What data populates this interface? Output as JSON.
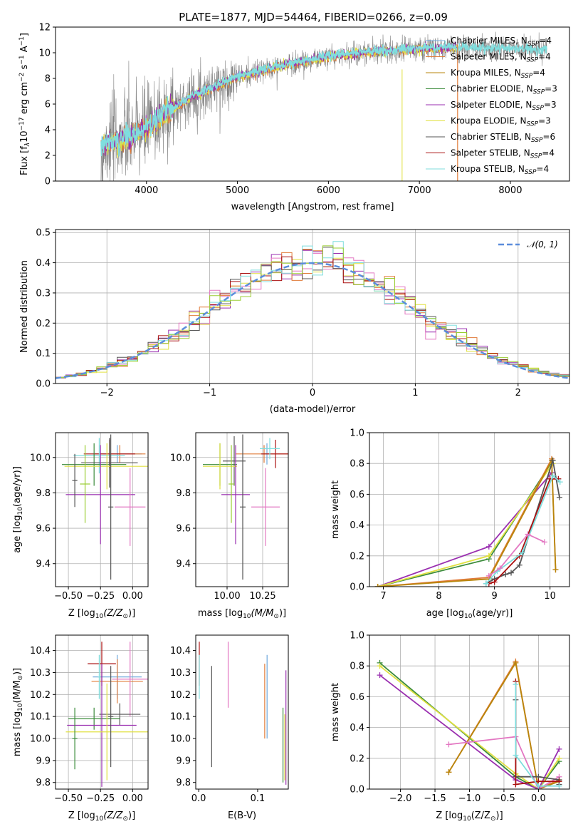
{
  "figure_title": "PLATE=1877, MJD=54464, FIBERID=0266, z=0.09",
  "colors": {
    "Chabrier MILES": "#6fa8dc",
    "Salpeter MILES": "#e07b39",
    "Kroupa MILES": "#b8860b",
    "Chabrier ELODIE": "#3c8c3c",
    "Salpeter ELODIE": "#9a2fb0",
    "Kroupa ELODIE": "#e0e040",
    "Chabrier STELIB": "#555555",
    "Salpeter STELIB": "#aa1111",
    "Kroupa STELIB": "#7fdede",
    "data": "#808080",
    "gauss": "#5b8ddb",
    "pink": "#e377c2",
    "lime": "#9acd32",
    "grid": "#b0b0b0"
  },
  "chart_data": [
    {
      "id": "spectrum",
      "type": "line",
      "title": "PLATE=1877, MJD=54464, FIBERID=0266, z=0.09",
      "xlabel": "wavelength [Angstrom, rest frame]",
      "ylabel_parts": [
        "Flux [f",
        "λ",
        "10",
        "−17",
        " erg cm",
        "−2",
        " s",
        "−1",
        " A",
        "−1",
        "]"
      ],
      "xlim": [
        3000,
        8650
      ],
      "ylim": [
        0,
        12
      ],
      "xticks": [
        4000,
        5000,
        6000,
        7000,
        8000
      ],
      "yticks": [
        0,
        2,
        4,
        6,
        8,
        10,
        12
      ],
      "grid": false,
      "legend_position": "top-right",
      "legend": [
        {
          "name": "Chabrier MILES",
          "n": "4"
        },
        {
          "name": "Salpeter MILES",
          "n": "4"
        },
        {
          "name": "Kroupa MILES",
          "n": "4"
        },
        {
          "name": "Chabrier ELODIE",
          "n": "3"
        },
        {
          "name": "Salpeter ELODIE",
          "n": "3"
        },
        {
          "name": "Kroupa ELODIE",
          "n": "3"
        },
        {
          "name": "Chabrier STELIB",
          "n": "6"
        },
        {
          "name": "Salpeter STELIB",
          "n": "4"
        },
        {
          "name": "Kroupa STELIB",
          "n": "4"
        }
      ],
      "legend_n_label": "N",
      "legend_n_sub": "SSP",
      "continuum": {
        "x": [
          3500,
          3600,
          3800,
          4000,
          4200,
          4500,
          5000,
          5500,
          6000,
          6500,
          7000,
          7500,
          8000,
          8400
        ],
        "y": [
          2.6,
          3.0,
          3.4,
          4.1,
          5.2,
          6.6,
          8.1,
          9.0,
          9.7,
          10.1,
          10.3,
          10.4,
          10.3,
          10.2
        ]
      },
      "data_range": [
        3500,
        8400
      ],
      "model_range": [
        3500,
        7420
      ],
      "extra_model_range": [
        7420,
        8400
      ]
    },
    {
      "id": "residuals",
      "type": "bar",
      "xlabel": "(data-model)/error",
      "ylabel": "Normed distribution",
      "xlim": [
        -2.5,
        2.5
      ],
      "ylim": [
        0,
        0.51
      ],
      "xticks": [
        -2,
        -1,
        0,
        1,
        2
      ],
      "yticks": [
        0,
        0.1,
        0.2,
        0.3,
        0.4,
        0.5
      ],
      "grid": true,
      "legend_position": "top-right",
      "legend_label": "𝒩(0, 1)",
      "bin_width": 0.1
    },
    {
      "id": "age-vs-Z",
      "type": "scatter",
      "xlabel_parts": [
        "Z [log",
        "10",
        "(Z/Z",
        "⊙",
        ")]"
      ],
      "ylabel_parts": [
        "age  [log",
        "10",
        "(age/yr)]"
      ],
      "xlim": [
        -0.6,
        0.12
      ],
      "ylim": [
        9.27,
        10.14
      ],
      "xticks": [
        -0.5,
        -0.25,
        0.0
      ],
      "xtick_labels": [
        "−0.50",
        "−0.25",
        "0.00"
      ],
      "yticks": [
        9.4,
        9.6,
        9.8,
        10.0
      ],
      "grid": true,
      "points": [
        {
          "series": "Chabrier MILES",
          "x": -0.12,
          "xerr": 0.19,
          "y": 10.02,
          "yerr": 0.05
        },
        {
          "series": "Salpeter MILES",
          "x": -0.1,
          "xerr": 0.2,
          "y": 10.02,
          "yerr": 0.05
        },
        {
          "series": "Salpeter STELIB",
          "x": -0.18,
          "xerr": 0.2,
          "y": 10.02,
          "yerr": 0.08
        },
        {
          "series": "Kroupa STELIB",
          "x": -0.26,
          "xerr": 0.2,
          "y": 10.01,
          "yerr": 0.1
        },
        {
          "series": "Chabrier ELODIE",
          "x": -0.3,
          "xerr": 0.25,
          "y": 9.96,
          "yerr": 0.12
        },
        {
          "series": "Chabrier STELIB",
          "x": -0.18,
          "xerr": 0.22,
          "y": 9.97,
          "yerr": 0.14
        },
        {
          "series": "Kroupa ELODIE",
          "x": -0.2,
          "xerr": 0.33,
          "y": 9.95,
          "yerr": 0.13
        },
        {
          "series": "Salpeter ELODIE",
          "x": -0.25,
          "xerr": 0.27,
          "y": 9.79,
          "yerr": 0.28
        },
        {
          "series": "pink",
          "x": -0.02,
          "xerr": 0.12,
          "y": 9.72,
          "yerr": 0.22
        },
        {
          "series": "lime",
          "x": -0.37,
          "xerr": 0.04,
          "y": 9.85,
          "yerr": 0.22
        },
        {
          "series": "Chabrier STELIB",
          "x": -0.45,
          "xerr": 0.02,
          "y": 9.87,
          "yerr": 0.15
        },
        {
          "series": "Chabrier STELIB",
          "x": -0.17,
          "xerr": 0.02,
          "y": 9.72,
          "yerr": 0.41
        }
      ]
    },
    {
      "id": "age-vs-mass",
      "type": "scatter",
      "xlabel_parts": [
        "mass [log",
        "10",
        "(M/M",
        "⊙",
        ")]"
      ],
      "ylabel_parts": [],
      "xlim": [
        9.78,
        10.43
      ],
      "ylim": [
        9.27,
        10.14
      ],
      "xticks": [
        10.0,
        10.25
      ],
      "xtick_labels": [
        "10.00",
        "10.25"
      ],
      "yticks": [
        9.4,
        9.6,
        9.8,
        10.0
      ],
      "grid": true,
      "points": [
        {
          "series": "Chabrier MILES",
          "x": 10.28,
          "xerr": 0.02,
          "y": 10.02,
          "yerr": 0.06
        },
        {
          "series": "Salpeter MILES",
          "x": 10.26,
          "xerr": 0.2,
          "y": 10.02,
          "yerr": 0.05
        },
        {
          "series": "Salpeter STELIB",
          "x": 10.34,
          "xerr": 0.1,
          "y": 10.02,
          "yerr": 0.08
        },
        {
          "series": "Kroupa STELIB",
          "x": 10.3,
          "xerr": 0.07,
          "y": 10.05,
          "yerr": 0.06
        },
        {
          "series": "Chabrier ELODIE",
          "x": 9.95,
          "xerr": 0.12,
          "y": 9.96,
          "yerr": 0.12
        },
        {
          "series": "Chabrier STELIB",
          "x": 10.05,
          "xerr": 0.08,
          "y": 9.98,
          "yerr": 0.14
        },
        {
          "series": "Kroupa ELODIE",
          "x": 9.95,
          "xerr": 0.12,
          "y": 9.95,
          "yerr": 0.13
        },
        {
          "series": "Salpeter ELODIE",
          "x": 10.06,
          "xerr": 0.1,
          "y": 9.79,
          "yerr": 0.28
        },
        {
          "series": "pink",
          "x": 10.27,
          "xerr": 0.1,
          "y": 9.72,
          "yerr": 0.22
        },
        {
          "series": "lime",
          "x": 10.03,
          "xerr": 0.02,
          "y": 9.85,
          "yerr": 0.22
        },
        {
          "series": "Chabrier STELIB",
          "x": 10.11,
          "xerr": 0.02,
          "y": 9.72,
          "yerr": 0.41
        }
      ]
    },
    {
      "id": "weight-vs-age",
      "type": "line",
      "xlabel_parts": [
        "age  [log",
        "10",
        "(age/yr)]"
      ],
      "ylabel": "mass weight",
      "xlim": [
        6.75,
        10.35
      ],
      "ylim": [
        0,
        1
      ],
      "xticks": [
        7,
        8,
        9,
        10
      ],
      "yticks": [
        0,
        0.2,
        0.4,
        0.6,
        0.8,
        1.0
      ],
      "grid": true,
      "series": [
        {
          "series": "Salpeter ELODIE",
          "x": [
            6.9,
            8.9,
            10.03
          ],
          "y": [
            0.0,
            0.26,
            0.74
          ]
        },
        {
          "series": "Chabrier ELODIE",
          "x": [
            6.9,
            8.9,
            10.05
          ],
          "y": [
            0.0,
            0.18,
            0.82
          ]
        },
        {
          "series": "Kroupa ELODIE",
          "x": [
            6.9,
            8.9,
            10.05
          ],
          "y": [
            0.0,
            0.2,
            0.8
          ]
        },
        {
          "series": "Salpeter MILES",
          "x": [
            6.9,
            8.9,
            10.03,
            10.1
          ],
          "y": [
            0.0,
            0.06,
            0.83,
            0.11
          ]
        },
        {
          "series": "Kroupa MILES",
          "x": [
            6.9,
            8.9,
            10.03,
            10.1
          ],
          "y": [
            0.0,
            0.05,
            0.82,
            0.11
          ]
        },
        {
          "series": "Chabrier STELIB",
          "x": [
            8.85,
            9.0,
            9.2,
            9.3,
            9.45,
            10.05,
            10.17
          ],
          "y": [
            0.02,
            0.05,
            0.08,
            0.09,
            0.14,
            0.82,
            0.58
          ]
        },
        {
          "series": "Salpeter STELIB",
          "x": [
            8.9,
            9.0,
            9.45,
            10.0,
            10.15
          ],
          "y": [
            0.02,
            0.03,
            0.2,
            0.7,
            0.7
          ]
        },
        {
          "series": "Kroupa STELIB",
          "x": [
            8.85,
            9.05,
            9.5,
            10.05,
            10.18
          ],
          "y": [
            0.02,
            0.1,
            0.22,
            0.72,
            0.68
          ]
        },
        {
          "series": "pink",
          "x": [
            8.9,
            9.1,
            9.6,
            9.9
          ],
          "y": [
            0.07,
            0.12,
            0.34,
            0.29
          ]
        }
      ]
    },
    {
      "id": "mass-vs-Z",
      "type": "scatter",
      "xlabel_parts": [
        "Z [log",
        "10",
        "(Z/Z",
        "⊙",
        ")]"
      ],
      "ylabel_parts": [
        "mass [log",
        "10",
        "(M/M",
        "⊙",
        ")]"
      ],
      "xlim": [
        -0.6,
        0.12
      ],
      "ylim": [
        9.77,
        10.47
      ],
      "xticks": [
        -0.5,
        -0.25,
        0.0
      ],
      "xtick_labels": [
        "−0.50",
        "−0.25",
        "0.00"
      ],
      "yticks": [
        9.8,
        9.9,
        10.0,
        10.1,
        10.2,
        10.3,
        10.4
      ],
      "grid": true,
      "points": [
        {
          "series": "Chabrier MILES",
          "x": -0.12,
          "xerr": 0.19,
          "y": 10.28,
          "yerr": 0.1
        },
        {
          "series": "Salpeter MILES",
          "x": -0.12,
          "xerr": 0.2,
          "y": 10.26,
          "yerr": 0.1
        },
        {
          "series": "Salpeter STELIB",
          "x": -0.24,
          "xerr": 0.11,
          "y": 10.34,
          "yerr": 0.1
        },
        {
          "series": "pink",
          "x": -0.02,
          "xerr": 0.14,
          "y": 10.27,
          "yerr": 0.17
        },
        {
          "series": "Chabrier STELIB",
          "x": -0.1,
          "xerr": 0.16,
          "y": 10.11,
          "yerr": 0.05
        },
        {
          "series": "Chabrier ELODIE",
          "x": -0.3,
          "xerr": 0.2,
          "y": 10.09,
          "yerr": 0.05
        },
        {
          "series": "Salpeter ELODIE",
          "x": -0.24,
          "xerr": 0.27,
          "y": 10.06,
          "yerr": 0.28
        },
        {
          "series": "Kroupa ELODIE",
          "x": -0.2,
          "xerr": 0.32,
          "y": 10.03,
          "yerr": 0.22
        },
        {
          "series": "Chabrier STELIB",
          "x": -0.17,
          "xerr": 0.02,
          "y": 10.1,
          "yerr": 0.23
        },
        {
          "series": "Chabrier ELODIE",
          "x": -0.45,
          "xerr": 0.02,
          "y": 10.0,
          "yerr": 0.14
        },
        {
          "series": "Kroupa STELIB",
          "x": -0.26,
          "xerr": 0.01,
          "y": 10.28,
          "yerr": 0.1
        }
      ]
    },
    {
      "id": "mass-vs-ebv",
      "type": "scatter",
      "xlabel": "E(B-V)",
      "ylabel_parts": [],
      "xlim": [
        -0.005,
        0.152
      ],
      "ylim": [
        9.77,
        10.47
      ],
      "xticks": [
        0.0,
        0.1
      ],
      "xtick_labels": [
        "0.0",
        "0.1"
      ],
      "yticks": [
        9.8,
        9.9,
        10.0,
        10.1,
        10.2,
        10.3,
        10.4
      ],
      "grid": false,
      "points": [
        {
          "series": "Salpeter STELIB",
          "x": 0.001,
          "xerr": 0,
          "y": 10.34,
          "yerr": 0.1
        },
        {
          "series": "Kroupa STELIB",
          "x": 0.001,
          "xerr": 0,
          "y": 10.28,
          "yerr": 0.1
        },
        {
          "series": "Chabrier STELIB",
          "x": 0.022,
          "xerr": 0,
          "y": 10.1,
          "yerr": 0.23
        },
        {
          "series": "pink",
          "x": 0.05,
          "xerr": 0,
          "y": 10.29,
          "yerr": 0.15
        },
        {
          "series": "Salpeter MILES",
          "x": 0.112,
          "xerr": 0,
          "y": 10.17,
          "yerr": 0.17
        },
        {
          "series": "Chabrier MILES",
          "x": 0.116,
          "xerr": 0,
          "y": 10.19,
          "yerr": 0.19
        },
        {
          "series": "Chabrier ELODIE",
          "x": 0.143,
          "xerr": 0,
          "y": 9.97,
          "yerr": 0.17
        },
        {
          "series": "Salpeter ELODIE",
          "x": 0.148,
          "xerr": 0,
          "y": 10.05,
          "yerr": 0.26
        },
        {
          "series": "Kroupa ELODIE",
          "x": 0.146,
          "xerr": 0,
          "y": 9.96,
          "yerr": 0.15
        }
      ]
    },
    {
      "id": "weight-vs-Z",
      "type": "line",
      "xlabel_parts": [
        "Z [log",
        "10",
        "(Z/Z",
        "⊙",
        ")]"
      ],
      "ylabel": "mass weight",
      "xlim": [
        -2.45,
        0.45
      ],
      "ylim": [
        0,
        1
      ],
      "xticks": [
        -2.0,
        -1.5,
        -1.0,
        -0.5,
        0.0
      ],
      "xtick_labels": [
        "−2.0",
        "−1.5",
        "−1.0",
        "−0.5",
        "0.0"
      ],
      "yticks": [
        0,
        0.2,
        0.4,
        0.6,
        0.8,
        1.0
      ],
      "grid": true,
      "series": [
        {
          "series": "Chabrier ELODIE",
          "x": [
            -2.3,
            -0.33,
            0.0,
            0.3
          ],
          "y": [
            0.82,
            0.08,
            0.0,
            0.18
          ]
        },
        {
          "series": "Kroupa ELODIE",
          "x": [
            -2.3,
            -0.33,
            0.0,
            0.3
          ],
          "y": [
            0.8,
            0.1,
            0.0,
            0.2
          ]
        },
        {
          "series": "Salpeter ELODIE",
          "x": [
            -2.3,
            -0.33,
            0.0,
            0.3
          ],
          "y": [
            0.74,
            0.06,
            0.0,
            0.26
          ]
        },
        {
          "series": "Salpeter MILES",
          "x": [
            -1.3,
            -0.33,
            0.0,
            0.3
          ],
          "y": [
            0.11,
            0.83,
            0.0,
            0.06
          ]
        },
        {
          "series": "Kroupa MILES",
          "x": [
            -1.3,
            -0.33,
            0.0,
            0.3
          ],
          "y": [
            0.11,
            0.82,
            0.0,
            0.05
          ]
        },
        {
          "series": "pink",
          "x": [
            -1.3,
            -0.33,
            0.0,
            0.3
          ],
          "y": [
            0.29,
            0.34,
            0.0,
            0.08
          ]
        },
        {
          "series": "Chabrier STELIB",
          "x": [
            -0.33,
            -0.33,
            0.0,
            0.3,
            0.3
          ],
          "y": [
            0.58,
            0.08,
            0.08,
            0.06,
            0.03
          ]
        },
        {
          "series": "Salpeter STELIB",
          "x": [
            -0.33,
            -0.33,
            0.0,
            0.3
          ],
          "y": [
            0.7,
            0.03,
            0.05,
            0.05
          ]
        },
        {
          "series": "Kroupa STELIB",
          "x": [
            -0.33,
            -0.33,
            0.0,
            0.3
          ],
          "y": [
            0.68,
            0.22,
            0.02,
            0.02
          ]
        }
      ]
    }
  ]
}
